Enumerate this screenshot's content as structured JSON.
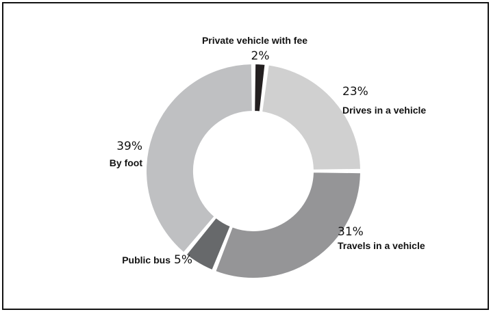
{
  "chart_data": {
    "type": "pie",
    "donut": true,
    "slices": [
      {
        "name": "Private vehicle with fee",
        "value": 2,
        "value_label": "2%",
        "color": "#231f20"
      },
      {
        "name": "Drives in a vehicle",
        "value": 23,
        "value_label": "23%",
        "color": "#d0d0d0"
      },
      {
        "name": "Travels in a vehicle",
        "value": 31,
        "value_label": "31%",
        "color": "#959597"
      },
      {
        "name": "Public bus",
        "value": 5,
        "value_label": "5%",
        "color": "#67696b"
      },
      {
        "name": "By foot",
        "value": 39,
        "value_label": "39%",
        "color": "#bfc0c2"
      }
    ]
  }
}
